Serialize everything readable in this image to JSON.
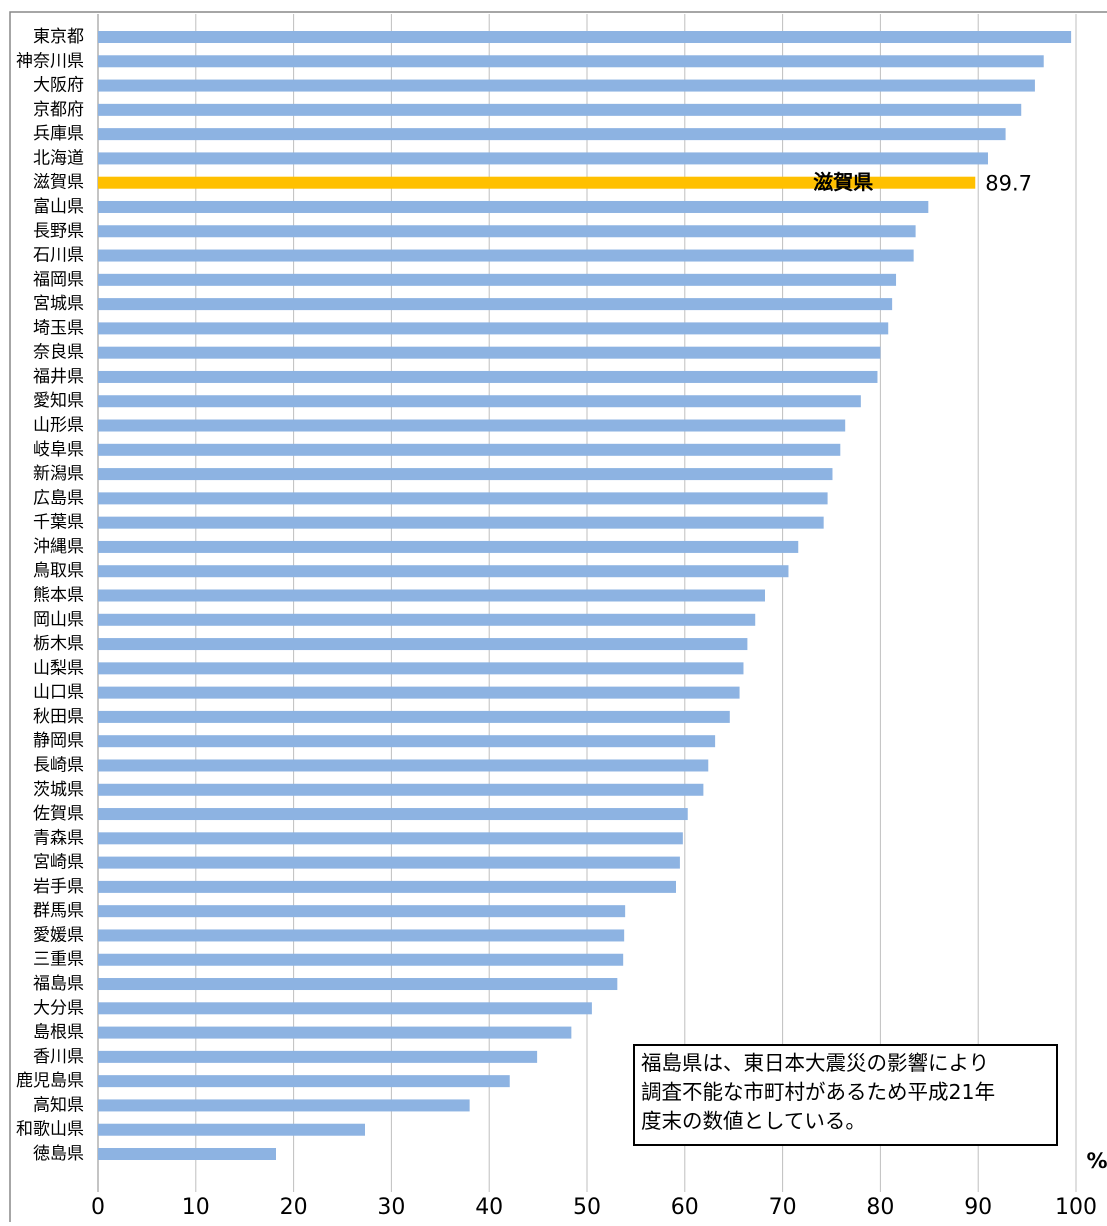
{
  "chart_data": {
    "type": "barh",
    "categories": [
      "東京都",
      "神奈川県",
      "大阪府",
      "京都府",
      "兵庫県",
      "北海道",
      "滋賀県",
      "富山県",
      "長野県",
      "石川県",
      "福岡県",
      "宮城県",
      "埼玉県",
      "奈良県",
      "福井県",
      "愛知県",
      "山形県",
      "岐阜県",
      "新潟県",
      "広島県",
      "千葉県",
      "沖縄県",
      "鳥取県",
      "熊本県",
      "岡山県",
      "栃木県",
      "山梨県",
      "山口県",
      "秋田県",
      "静岡県",
      "長崎県",
      "茨城県",
      "佐賀県",
      "青森県",
      "宮崎県",
      "岩手県",
      "群馬県",
      "愛媛県",
      "三重県",
      "福島県",
      "大分県",
      "島根県",
      "香川県",
      "鹿児島県",
      "高知県",
      "和歌山県",
      "徳島県"
    ],
    "values": [
      99.5,
      96.7,
      95.8,
      94.4,
      92.8,
      91.0,
      89.7,
      84.9,
      83.6,
      83.4,
      81.6,
      81.2,
      80.8,
      80.0,
      79.7,
      78.0,
      76.4,
      75.9,
      75.1,
      74.6,
      74.2,
      71.6,
      70.6,
      68.2,
      67.2,
      66.4,
      66.0,
      65.6,
      64.6,
      63.1,
      62.4,
      61.9,
      60.3,
      59.8,
      59.5,
      59.1,
      53.9,
      53.8,
      53.7,
      53.1,
      50.5,
      48.4,
      44.9,
      42.1,
      38.0,
      27.3,
      18.2
    ],
    "color": "#8db3e2",
    "highlight_category": "滋賀県",
    "highlight_color": "#ffc000",
    "xlim": [
      0,
      100
    ],
    "xticks": [
      0,
      10,
      20,
      30,
      40,
      50,
      60,
      70,
      80,
      90,
      100
    ],
    "x_unit": "%",
    "grid": true,
    "annotation": [
      "福島県は、東日本大震災の影響により",
      "調査不能な市町村があるため平成21年",
      "度末の数値としている。"
    ]
  }
}
